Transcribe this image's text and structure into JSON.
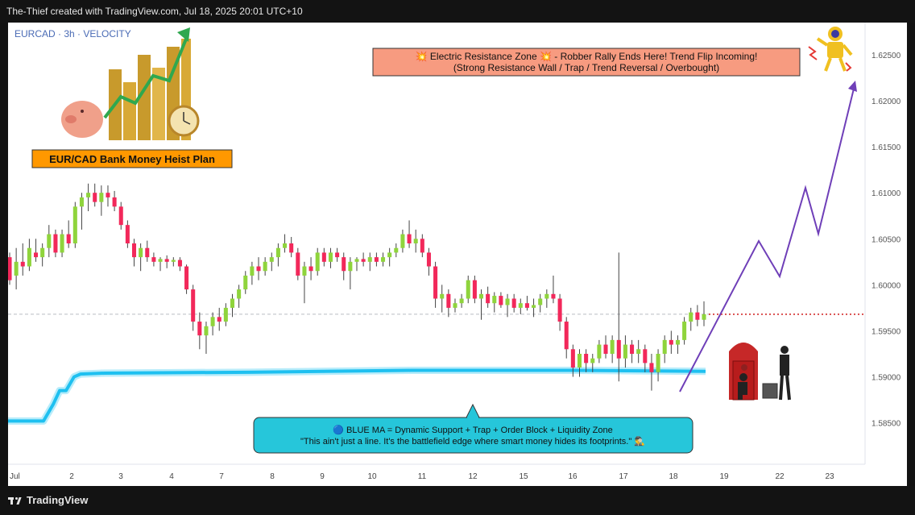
{
  "header": {
    "credit": "The-Thief created with TradingView.com, Jul 18, 2025 20:01 UTC+10"
  },
  "footer": {
    "brand": "TradingView"
  },
  "colors": {
    "up": "#8fd43c",
    "down": "#f2285a",
    "ma": "#1ec0f0",
    "projection": "#6f3fb8",
    "resistance_box": "#f79b80",
    "title_box": "#ff9800",
    "info_box": "#26c6da"
  },
  "chart_data": {
    "type": "candlestick",
    "symbol_label": "EURCAD · 3h · VELOCITY",
    "ylim": [
      1.5805,
      1.6285
    ],
    "y_ticks": [
      "1.62500",
      "1.62000",
      "1.61500",
      "1.61000",
      "1.60500",
      "1.60000",
      "1.59500",
      "1.59000",
      "1.58500"
    ],
    "x_ticks": [
      "Jul",
      "2",
      "3",
      "4",
      "7",
      "8",
      "9",
      "10",
      "11",
      "12",
      "15",
      "16",
      "17",
      "18",
      "19",
      "22",
      "23"
    ],
    "last_price": 1.5968,
    "candles": [
      [
        1.603,
        1.6035,
        1.6,
        1.6005
      ],
      [
        1.601,
        1.604,
        1.5995,
        1.6025
      ],
      [
        1.6025,
        1.6045,
        1.601,
        1.602
      ],
      [
        1.602,
        1.605,
        1.6015,
        1.604
      ],
      [
        1.6035,
        1.605,
        1.6025,
        1.603
      ],
      [
        1.603,
        1.6045,
        1.602,
        1.604
      ],
      [
        1.604,
        1.6065,
        1.603,
        1.6055
      ],
      [
        1.6055,
        1.606,
        1.603,
        1.6035
      ],
      [
        1.6035,
        1.606,
        1.603,
        1.6055
      ],
      [
        1.6055,
        1.607,
        1.604,
        1.6045
      ],
      [
        1.6045,
        1.609,
        1.604,
        1.6085
      ],
      [
        1.6085,
        1.61,
        1.606,
        1.6095
      ],
      [
        1.6095,
        1.611,
        1.608,
        1.61
      ],
      [
        1.61,
        1.611,
        1.6085,
        1.609
      ],
      [
        1.609,
        1.6108,
        1.6075,
        1.61
      ],
      [
        1.61,
        1.6108,
        1.6085,
        1.6095
      ],
      [
        1.6095,
        1.6102,
        1.608,
        1.6085
      ],
      [
        1.6085,
        1.609,
        1.606,
        1.6065
      ],
      [
        1.6065,
        1.607,
        1.604,
        1.6045
      ],
      [
        1.6045,
        1.605,
        1.602,
        1.603
      ],
      [
        1.603,
        1.6045,
        1.6015,
        1.604
      ],
      [
        1.604,
        1.6048,
        1.6025,
        1.603
      ],
      [
        1.603,
        1.6035,
        1.602,
        1.6025
      ],
      [
        1.6025,
        1.603,
        1.6015,
        1.6028
      ],
      [
        1.6028,
        1.6032,
        1.6018,
        1.6025
      ],
      [
        1.6025,
        1.603,
        1.602,
        1.6027
      ],
      [
        1.6027,
        1.603,
        1.6015,
        1.602
      ],
      [
        1.602,
        1.6022,
        1.599,
        1.5995
      ],
      [
        1.5995,
        1.6,
        1.595,
        1.596
      ],
      [
        1.596,
        1.597,
        1.593,
        1.5945
      ],
      [
        1.5945,
        1.596,
        1.5925,
        1.5955
      ],
      [
        1.5955,
        1.597,
        1.5945,
        1.5965
      ],
      [
        1.5965,
        1.5975,
        1.595,
        1.596
      ],
      [
        1.596,
        1.598,
        1.5955,
        1.5975
      ],
      [
        1.5975,
        1.599,
        1.5965,
        1.5985
      ],
      [
        1.5985,
        1.6,
        1.5975,
        1.5995
      ],
      [
        1.5995,
        1.6015,
        1.599,
        1.601
      ],
      [
        1.601,
        1.6025,
        1.6,
        1.602
      ],
      [
        1.602,
        1.603,
        1.6005,
        1.6015
      ],
      [
        1.6015,
        1.603,
        1.601,
        1.6025
      ],
      [
        1.6025,
        1.6035,
        1.6015,
        1.603
      ],
      [
        1.603,
        1.6045,
        1.602,
        1.604
      ],
      [
        1.604,
        1.6055,
        1.6035,
        1.6045
      ],
      [
        1.6045,
        1.6052,
        1.603,
        1.6035
      ],
      [
        1.6035,
        1.604,
        1.6005,
        1.601
      ],
      [
        1.601,
        1.6025,
        1.598,
        1.602
      ],
      [
        1.602,
        1.603,
        1.6005,
        1.6015
      ],
      [
        1.6015,
        1.604,
        1.601,
        1.6035
      ],
      [
        1.6035,
        1.604,
        1.602,
        1.6025
      ],
      [
        1.6025,
        1.604,
        1.6018,
        1.6035
      ],
      [
        1.6035,
        1.604,
        1.6025,
        1.603
      ],
      [
        1.603,
        1.6035,
        1.6005,
        1.6015
      ],
      [
        1.6015,
        1.603,
        1.5995,
        1.6025
      ],
      [
        1.6025,
        1.603,
        1.6015,
        1.6028
      ],
      [
        1.6028,
        1.6035,
        1.602,
        1.6025
      ],
      [
        1.6025,
        1.6035,
        1.6015,
        1.603
      ],
      [
        1.603,
        1.6035,
        1.602,
        1.6025
      ],
      [
        1.6025,
        1.6035,
        1.602,
        1.603
      ],
      [
        1.603,
        1.604,
        1.602,
        1.6035
      ],
      [
        1.6035,
        1.6045,
        1.603,
        1.604
      ],
      [
        1.604,
        1.606,
        1.6035,
        1.6055
      ],
      [
        1.6055,
        1.607,
        1.604,
        1.6045
      ],
      [
        1.6045,
        1.606,
        1.6035,
        1.605
      ],
      [
        1.605,
        1.6055,
        1.603,
        1.6035
      ],
      [
        1.6035,
        1.604,
        1.601,
        1.602
      ],
      [
        1.602,
        1.6025,
        1.5975,
        1.5985
      ],
      [
        1.5985,
        1.6,
        1.597,
        1.599
      ],
      [
        1.599,
        1.5995,
        1.5965,
        1.5975
      ],
      [
        1.5975,
        1.5985,
        1.597,
        1.598
      ],
      [
        1.598,
        1.599,
        1.5975,
        1.5985
      ],
      [
        1.5985,
        1.601,
        1.598,
        1.6005
      ],
      [
        1.6005,
        1.601,
        1.598,
        1.5985
      ],
      [
        1.5985,
        1.5995,
        1.5962,
        1.599
      ],
      [
        1.599,
        1.5998,
        1.5975,
        1.598
      ],
      [
        1.598,
        1.5992,
        1.597,
        1.5988
      ],
      [
        1.5988,
        1.5992,
        1.5975,
        1.5978
      ],
      [
        1.5978,
        1.599,
        1.5965,
        1.5985
      ],
      [
        1.5985,
        1.599,
        1.597,
        1.5975
      ],
      [
        1.5975,
        1.5985,
        1.5968,
        1.598
      ],
      [
        1.598,
        1.5988,
        1.5972,
        1.5975
      ],
      [
        1.5975,
        1.5985,
        1.5965,
        1.5978
      ],
      [
        1.5978,
        1.599,
        1.597,
        1.5985
      ],
      [
        1.5985,
        1.5995,
        1.5975,
        1.599
      ],
      [
        1.599,
        1.601,
        1.598,
        1.5985
      ],
      [
        1.5985,
        1.599,
        1.595,
        1.596
      ],
      [
        1.596,
        1.5965,
        1.592,
        1.593
      ],
      [
        1.593,
        1.5935,
        1.59,
        1.591
      ],
      [
        1.591,
        1.593,
        1.59,
        1.5925
      ],
      [
        1.5925,
        1.593,
        1.5905,
        1.5915
      ],
      [
        1.5915,
        1.5925,
        1.5905,
        1.592
      ],
      [
        1.592,
        1.594,
        1.5915,
        1.5935
      ],
      [
        1.5935,
        1.5945,
        1.592,
        1.5925
      ],
      [
        1.5925,
        1.5945,
        1.5915,
        1.594
      ],
      [
        1.594,
        1.6035,
        1.5895,
        1.592
      ],
      [
        1.592,
        1.5945,
        1.591,
        1.5935
      ],
      [
        1.5935,
        1.594,
        1.5915,
        1.5925
      ],
      [
        1.5925,
        1.594,
        1.5915,
        1.593
      ],
      [
        1.593,
        1.5935,
        1.5905,
        1.5915
      ],
      [
        1.5915,
        1.5925,
        1.5885,
        1.5905
      ],
      [
        1.5905,
        1.593,
        1.5895,
        1.5925
      ],
      [
        1.5925,
        1.5945,
        1.5915,
        1.594
      ],
      [
        1.594,
        1.595,
        1.5925,
        1.5935
      ],
      [
        1.5935,
        1.5945,
        1.5925,
        1.594
      ],
      [
        1.594,
        1.5965,
        1.5935,
        1.596
      ],
      [
        1.596,
        1.5975,
        1.595,
        1.597
      ],
      [
        1.597,
        1.5978,
        1.5955,
        1.5962
      ],
      [
        1.5962,
        1.5982,
        1.5955,
        1.5968
      ]
    ]
  },
  "annotations": {
    "title_box": "EUR/CAD Bank Money Heist Plan",
    "resistance_line1": "💥 Electric Resistance Zone 💥 - Robber Rally Ends Here! Trend Flip Incoming!",
    "resistance_line2": "(Strong Resistance Wall / Trap / Trend Reversal / Overbought)",
    "ma_line1": "🔵 BLUE MA = Dynamic Support + Trap + Order Block + Liquidity Zone",
    "ma_line2": "\"This ain't just a line. It's the battlefield edge where smart money hides its footprints.\" 🕵️‍♂️"
  }
}
